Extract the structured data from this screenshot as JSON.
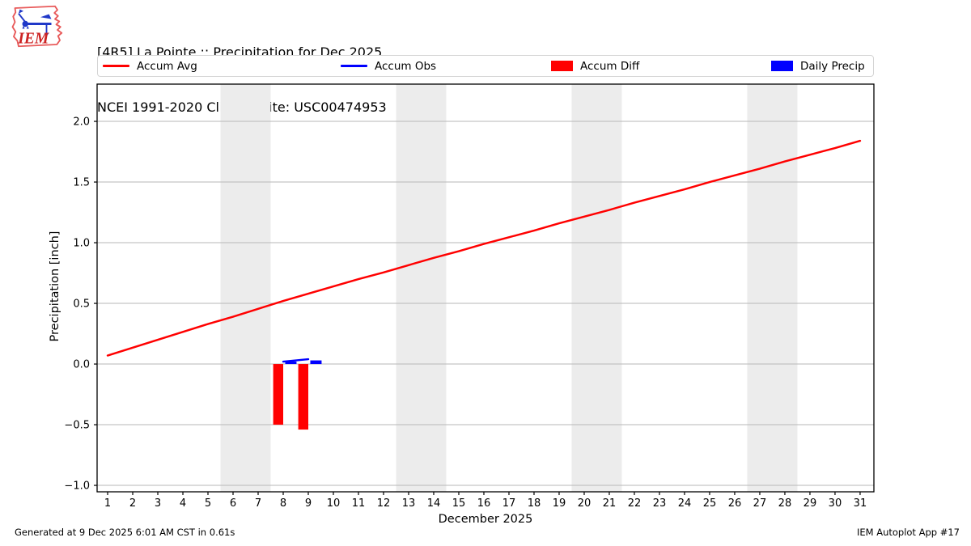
{
  "header": {
    "title_line1": "[4R5] La Pointe :: Precipitation for Dec 2025",
    "title_line2": "NCEI 1991-2020 Climate Site: USC00474953",
    "logo_text": "IEM"
  },
  "legend": {
    "items": [
      {
        "label": "Accum Avg",
        "type": "line",
        "color": "#ff0000"
      },
      {
        "label": "Accum Obs",
        "type": "line",
        "color": "#0000ff"
      },
      {
        "label": "Accum Diff",
        "type": "patch",
        "color": "#ff0000"
      },
      {
        "label": "Daily Precip",
        "type": "patch",
        "color": "#0000ff"
      }
    ]
  },
  "chart_data": {
    "type": "line+bar",
    "xlabel": "December 2025",
    "ylabel": "Precipitation [inch]",
    "xlim": [
      0.58,
      31.55
    ],
    "ylim": [
      -1.053,
      2.307
    ],
    "x_ticks": [
      1,
      2,
      3,
      4,
      5,
      6,
      7,
      8,
      9,
      10,
      11,
      12,
      13,
      14,
      15,
      16,
      17,
      18,
      19,
      20,
      21,
      22,
      23,
      24,
      25,
      26,
      27,
      28,
      29,
      30,
      31
    ],
    "y_ticks": [
      -1.0,
      -0.5,
      0.0,
      0.5,
      1.0,
      1.5,
      2.0
    ],
    "grid": "horizontal",
    "weekend_bands": [
      [
        5.5,
        7.5
      ],
      [
        12.5,
        14.5
      ],
      [
        19.5,
        21.5
      ],
      [
        26.5,
        28.5
      ]
    ],
    "series": [
      {
        "name": "Accum Avg",
        "type": "line",
        "color": "#ff0000",
        "x": [
          1,
          2,
          3,
          4,
          5,
          6,
          7,
          8,
          9,
          10,
          11,
          12,
          13,
          14,
          15,
          16,
          17,
          18,
          19,
          20,
          21,
          22,
          23,
          24,
          25,
          26,
          27,
          28,
          29,
          30,
          31
        ],
        "y": [
          0.07,
          0.135,
          0.2,
          0.265,
          0.33,
          0.39,
          0.455,
          0.52,
          0.58,
          0.64,
          0.7,
          0.755,
          0.815,
          0.875,
          0.93,
          0.99,
          1.045,
          1.1,
          1.16,
          1.215,
          1.27,
          1.33,
          1.385,
          1.44,
          1.5,
          1.555,
          1.61,
          1.67,
          1.725,
          1.78,
          1.84
        ]
      },
      {
        "name": "Accum Obs",
        "type": "line",
        "color": "#0000ff",
        "x": [
          8,
          9
        ],
        "y": [
          0.02,
          0.04
        ]
      },
      {
        "name": "Accum Diff",
        "type": "bar",
        "color": "#ff0000",
        "bar_offset": -0.4,
        "bar_width": 0.4,
        "x": [
          8,
          9
        ],
        "y": [
          -0.5,
          -0.54
        ]
      },
      {
        "name": "Daily Precip",
        "type": "bar",
        "color": "#0000ff",
        "bar_offset": 0.08,
        "bar_width": 0.45,
        "x": [
          8,
          9
        ],
        "y": [
          0.02,
          0.03
        ]
      }
    ]
  },
  "footer": {
    "left": "Generated at 9 Dec 2025 6:01 AM CST in 0.61s",
    "right": "IEM Autoplot App #17"
  },
  "colors": {
    "accent_red": "#ff0000",
    "accent_blue": "#0000ff",
    "weekend_band": "#ececec",
    "gridline": "#b7b7b7",
    "spine": "#000000",
    "legend_border": "#d5d5d5",
    "logo_outline": "#e85a5a",
    "logo_text": "#cc2222",
    "logo_instrument": "#2038c8"
  }
}
